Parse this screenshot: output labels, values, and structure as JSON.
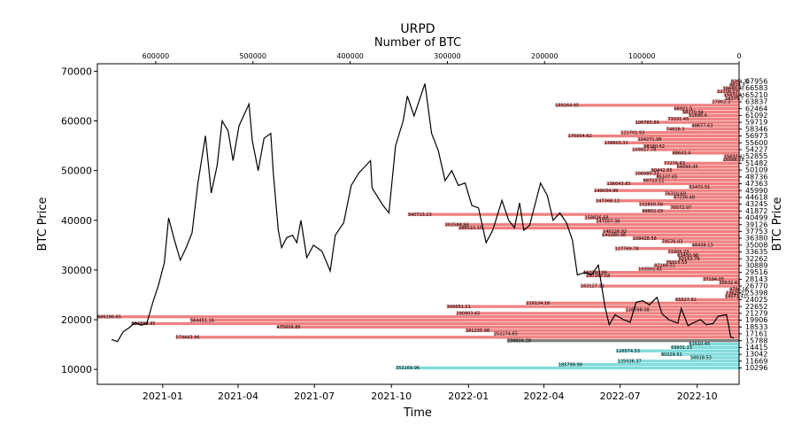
{
  "chart_data": {
    "type": "bar",
    "title": "URPD",
    "subtitle": "Number of BTC",
    "xlabel": "Time",
    "ylabel": "BTC Price",
    "ylabel_right": "BTC Price",
    "ylim": [
      7000,
      71500
    ],
    "x_date_range": [
      "2020-10-15",
      "2022-11-20"
    ],
    "x_tick_labels": [
      "2021-01",
      "2021-04",
      "2021-07",
      "2021-10",
      "2022-01",
      "2022-04",
      "2022-07",
      "2022-10"
    ],
    "x_tick_dates": [
      "2021-01-01",
      "2021-04-01",
      "2021-07-01",
      "2021-10-01",
      "2022-01-01",
      "2022-04-01",
      "2022-07-01",
      "2022-10-01"
    ],
    "y_ticks": [
      10000,
      20000,
      30000,
      40000,
      50000,
      60000,
      70000
    ],
    "top_axis": {
      "label": "Number of BTC",
      "range": [
        660000,
        0
      ],
      "ticks": [
        600000,
        500000,
        400000,
        300000,
        200000,
        100000,
        0
      ]
    },
    "colors": {
      "above_price": "#f08080",
      "below_price": "#7fdcdc",
      "current_band": "#808080",
      "price_line": "#000000"
    },
    "price_series": [
      [
        "2020-11-01",
        16000
      ],
      [
        "2020-11-08",
        15600
      ],
      [
        "2020-11-15",
        17600
      ],
      [
        "2020-11-22",
        18400
      ],
      [
        "2020-11-29",
        19400
      ],
      [
        "2020-12-06",
        18900
      ],
      [
        "2020-12-13",
        19200
      ],
      [
        "2020-12-20",
        23400
      ],
      [
        "2020-12-27",
        27000
      ],
      [
        "2021-01-03",
        31500
      ],
      [
        "2021-01-08",
        40500
      ],
      [
        "2021-01-15",
        36000
      ],
      [
        "2021-01-22",
        32000
      ],
      [
        "2021-01-29",
        34500
      ],
      [
        "2021-02-05",
        37500
      ],
      [
        "2021-02-12",
        47500
      ],
      [
        "2021-02-21",
        57000
      ],
      [
        "2021-02-28",
        45500
      ],
      [
        "2021-03-07",
        51000
      ],
      [
        "2021-03-13",
        60000
      ],
      [
        "2021-03-20",
        58000
      ],
      [
        "2021-03-26",
        52000
      ],
      [
        "2021-04-02",
        59000
      ],
      [
        "2021-04-14",
        63400
      ],
      [
        "2021-04-18",
        56000
      ],
      [
        "2021-04-25",
        50000
      ],
      [
        "2021-05-02",
        56500
      ],
      [
        "2021-05-10",
        57500
      ],
      [
        "2021-05-13",
        49500
      ],
      [
        "2021-05-19",
        38000
      ],
      [
        "2021-05-23",
        34500
      ],
      [
        "2021-05-29",
        36500
      ],
      [
        "2021-06-05",
        37000
      ],
      [
        "2021-06-10",
        35500
      ],
      [
        "2021-06-15",
        40000
      ],
      [
        "2021-06-22",
        32500
      ],
      [
        "2021-06-30",
        35000
      ],
      [
        "2021-07-10",
        33800
      ],
      [
        "2021-07-20",
        29800
      ],
      [
        "2021-07-26",
        37000
      ],
      [
        "2021-08-05",
        39500
      ],
      [
        "2021-08-14",
        47000
      ],
      [
        "2021-08-23",
        49500
      ],
      [
        "2021-09-06",
        52000
      ],
      [
        "2021-09-08",
        46500
      ],
      [
        "2021-09-21",
        43000
      ],
      [
        "2021-09-28",
        41500
      ],
      [
        "2021-10-06",
        55000
      ],
      [
        "2021-10-15",
        60000
      ],
      [
        "2021-10-20",
        65000
      ],
      [
        "2021-10-28",
        61000
      ],
      [
        "2021-11-10",
        67500
      ],
      [
        "2021-11-18",
        57500
      ],
      [
        "2021-11-26",
        54000
      ],
      [
        "2021-12-04",
        48000
      ],
      [
        "2021-12-12",
        50000
      ],
      [
        "2021-12-20",
        47000
      ],
      [
        "2021-12-28",
        47500
      ],
      [
        "2022-01-05",
        43000
      ],
      [
        "2022-01-13",
        42500
      ],
      [
        "2022-01-22",
        35500
      ],
      [
        "2022-01-30",
        38000
      ],
      [
        "2022-02-10",
        44000
      ],
      [
        "2022-02-18",
        40000
      ],
      [
        "2022-02-25",
        38500
      ],
      [
        "2022-03-03",
        43500
      ],
      [
        "2022-03-08",
        38000
      ],
      [
        "2022-03-15",
        39000
      ],
      [
        "2022-03-28",
        47500
      ],
      [
        "2022-04-05",
        45000
      ],
      [
        "2022-04-12",
        40000
      ],
      [
        "2022-04-20",
        41500
      ],
      [
        "2022-04-28",
        39500
      ],
      [
        "2022-05-05",
        36000
      ],
      [
        "2022-05-11",
        29000
      ],
      [
        "2022-05-20",
        29500
      ],
      [
        "2022-05-28",
        29000
      ],
      [
        "2022-06-05",
        31000
      ],
      [
        "2022-06-13",
        22500
      ],
      [
        "2022-06-18",
        19000
      ],
      [
        "2022-06-25",
        21000
      ],
      [
        "2022-07-05",
        20000
      ],
      [
        "2022-07-13",
        19500
      ],
      [
        "2022-07-20",
        23500
      ],
      [
        "2022-07-28",
        23800
      ],
      [
        "2022-08-05",
        23000
      ],
      [
        "2022-08-14",
        24500
      ],
      [
        "2022-08-20",
        21200
      ],
      [
        "2022-08-28",
        20000
      ],
      [
        "2022-09-08",
        19300
      ],
      [
        "2022-09-12",
        22300
      ],
      [
        "2022-09-20",
        18800
      ],
      [
        "2022-09-28",
        19500
      ],
      [
        "2022-10-05",
        20000
      ],
      [
        "2022-10-12",
        19000
      ],
      [
        "2022-10-20",
        19200
      ],
      [
        "2022-10-26",
        20700
      ],
      [
        "2022-11-05",
        21000
      ],
      [
        "2022-11-08",
        18500
      ],
      [
        "2022-11-10",
        16500
      ],
      [
        "2022-11-14",
        16300
      ]
    ],
    "bars_above_price": [
      {
        "price": 67956,
        "btc": 8261.32,
        "label": "8261.32"
      },
      {
        "price": 67270,
        "btc": 9814.9,
        "label": "9814.9"
      },
      {
        "price": 66583,
        "btc": 16680.83,
        "label": "16680.83"
      },
      {
        "price": 65897,
        "btc": 22708.27,
        "label": "22708.27"
      },
      {
        "price": 65210,
        "btc": 15670.15,
        "label": "15670.15"
      },
      {
        "price": 64524,
        "btc": 14375.7,
        "label": "14375.7"
      },
      {
        "price": 63837,
        "btc": 27802.3,
        "label": "27802.3"
      },
      {
        "price": 63151,
        "btc": 189164.95,
        "label": "189164.95"
      },
      {
        "price": 62464,
        "btc": 66921.5,
        "label": "66921.5"
      },
      {
        "price": 61778,
        "btc": 58270.94,
        "label": "58270.94"
      },
      {
        "price": 61092,
        "btc": 51690.6,
        "label": "51690.6"
      },
      {
        "price": 60405,
        "btc": 73331.45,
        "label": "73331.45"
      },
      {
        "price": 59719,
        "btc": 106785.89,
        "label": "106785.89"
      },
      {
        "price": 59032,
        "btc": 48677.63,
        "label": "48677.63"
      },
      {
        "price": 58346,
        "btc": 74828.3,
        "label": "74828.3"
      },
      {
        "price": 57659,
        "btc": 121701.93,
        "label": "121701.93"
      },
      {
        "price": 56973,
        "btc": 176004.62,
        "label": "176004.62"
      },
      {
        "price": 56286,
        "btc": 104271.98,
        "label": "104271.98"
      },
      {
        "price": 55600,
        "btc": 138603.31,
        "label": "138603.31"
      },
      {
        "price": 54914,
        "btc": 98180.62,
        "label": "98180.62"
      },
      {
        "price": 54227,
        "btc": 109917.78,
        "label": "109917.78"
      },
      {
        "price": 53541,
        "btc": 68643.4,
        "label": "68643.4"
      },
      {
        "price": 52855,
        "btc": 15632.22,
        "label": "15632.22"
      },
      {
        "price": 52168,
        "btc": 16566.68,
        "label": "16566.68"
      },
      {
        "price": 51482,
        "btc": 77276.63,
        "label": "77276.63"
      },
      {
        "price": 50795,
        "btc": 64090.43,
        "label": "64090.43"
      },
      {
        "price": 50109,
        "btc": 90442.85,
        "label": "90442.85"
      },
      {
        "price": 49422,
        "btc": 106985.33,
        "label": "106985.33"
      },
      {
        "price": 48736,
        "btc": 85107.65,
        "label": "85107.65"
      },
      {
        "price": 48049,
        "btc": 98723.11,
        "label": "98723.11"
      },
      {
        "price": 47363,
        "btc": 136043.83,
        "label": "136043.83"
      },
      {
        "price": 46676,
        "btc": 51472.51,
        "label": "51472.51"
      },
      {
        "price": 45990,
        "btc": 149034.99,
        "label": "149034.99"
      },
      {
        "price": 45304,
        "btc": 76310.69,
        "label": "76310.69"
      },
      {
        "price": 44618,
        "btc": 67236.48,
        "label": "67236.48"
      },
      {
        "price": 43931,
        "btc": 147368.12,
        "label": "147368.12"
      },
      {
        "price": 43245,
        "btc": 102850.58,
        "label": "102850.58"
      },
      {
        "price": 42558,
        "btc": 70572.97,
        "label": "70572.97"
      },
      {
        "price": 41872,
        "btc": 99802.03,
        "label": "99802.03"
      },
      {
        "price": 41185,
        "btc": 340713.23,
        "label": "340713.23"
      },
      {
        "price": 40499,
        "btc": 158836.68,
        "label": "158836.68"
      },
      {
        "price": 39813,
        "btc": 147167.38,
        "label": "147167.38"
      },
      {
        "price": 39126,
        "btc": 302588.96,
        "label": "302588.96"
      },
      {
        "price": 38440,
        "btc": 288510.15,
        "label": "288510.15"
      },
      {
        "price": 37753,
        "btc": 140126.92,
        "label": "140126.92"
      },
      {
        "price": 37067,
        "btc": 141080.98,
        "label": "141080.98"
      },
      {
        "price": 36380,
        "btc": 109428.58,
        "label": "109428.58"
      },
      {
        "price": 35694,
        "btc": 79576.03,
        "label": "79576.03"
      },
      {
        "price": 35008,
        "btc": 48438.13,
        "label": "48438.13"
      },
      {
        "price": 34321,
        "btc": 127769.78,
        "label": "127769.78"
      },
      {
        "price": 33635,
        "btc": 73305.23,
        "label": "73305.23"
      },
      {
        "price": 32948,
        "btc": 63450.96,
        "label": "63450.96"
      },
      {
        "price": 32262,
        "btc": 62152.79,
        "label": "62152.79"
      },
      {
        "price": 31575,
        "btc": 75015.53,
        "label": "75015.53"
      },
      {
        "price": 30889,
        "btc": 87288.51,
        "label": "87288.51"
      },
      {
        "price": 30203,
        "btc": 103501.81,
        "label": "103501.81"
      },
      {
        "price": 29516,
        "btc": 160140.86,
        "label": "160140.86"
      },
      {
        "price": 28830,
        "btc": 157267.58,
        "label": "157267.58"
      },
      {
        "price": 28143,
        "btc": 37194.05,
        "label": "37194.05"
      },
      {
        "price": 27457,
        "btc": 20532.63,
        "label": "20532.63"
      },
      {
        "price": 26770,
        "btc": 163127.11,
        "label": "163127.11"
      },
      {
        "price": 26084,
        "btc": 9786.56,
        "label": "9786.56"
      },
      {
        "price": 25398,
        "btc": 13620.27,
        "label": "13620.27"
      },
      {
        "price": 24711,
        "btc": 14571.41,
        "label": "14571.41"
      },
      {
        "price": 24025,
        "btc": 65527.82,
        "label": "65527.82"
      },
      {
        "price": 23338,
        "btc": 219124.16,
        "label": "219124.16"
      },
      {
        "price": 22652,
        "btc": 300651.21,
        "label": "300651.21"
      },
      {
        "price": 21965,
        "btc": 116798.08,
        "label": "116798.08"
      },
      {
        "price": 21279,
        "btc": 290903.65,
        "label": "290903.65"
      },
      {
        "price": 20593,
        "btc": 686186.65,
        "label": "686186.65"
      },
      {
        "price": 19906,
        "btc": 564451.16,
        "label": "564451.16"
      },
      {
        "price": 19220,
        "btc": 624899.95,
        "label": "624899.95"
      },
      {
        "price": 18533,
        "btc": 475606.86,
        "label": "475606.86"
      },
      {
        "price": 17847,
        "btc": 281235.98,
        "label": "281235.98"
      },
      {
        "price": 17161,
        "btc": 252274.65,
        "label": "252274.65"
      },
      {
        "price": 16474,
        "btc": 579443.96,
        "label": "579443.96"
      }
    ],
    "current_price_bar": {
      "price": 15788,
      "btc": 238604.28,
      "label": "238604.28"
    },
    "bars_below_price": [
      {
        "price": 15101,
        "btc": 51510.45,
        "label": "51510.45"
      },
      {
        "price": 14415,
        "btc": 69931.33,
        "label": "69931.33"
      },
      {
        "price": 13728,
        "btc": 126574.53,
        "label": "126574.53"
      },
      {
        "price": 13042,
        "btc": 80228.52,
        "label": "80228.52"
      },
      {
        "price": 12356,
        "btc": 50018.53,
        "label": "50018.53"
      },
      {
        "price": 11669,
        "btc": 125026.37,
        "label": "125026.37"
      },
      {
        "price": 10983,
        "btc": 185799.99,
        "label": "185799.99"
      },
      {
        "price": 10296,
        "btc": 353169.96,
        "label": "353169.96"
      }
    ],
    "right_tick_labels": [
      "67956",
      "66583",
      "65210",
      "63837",
      "62464",
      "61092",
      "59719",
      "58346",
      "56973",
      "55600",
      "54227",
      "52855",
      "51482",
      "50109",
      "48736",
      "47363",
      "45990",
      "44618",
      "43245",
      "41872",
      "40499",
      "39126",
      "37753",
      "36380",
      "35008",
      "33635",
      "32262",
      "30889",
      "29516",
      "28143",
      "26770",
      "25398",
      "24025",
      "22652",
      "21279",
      "19906",
      "18533",
      "17161",
      "15788",
      "14415",
      "13042",
      "11669",
      "10296"
    ]
  }
}
